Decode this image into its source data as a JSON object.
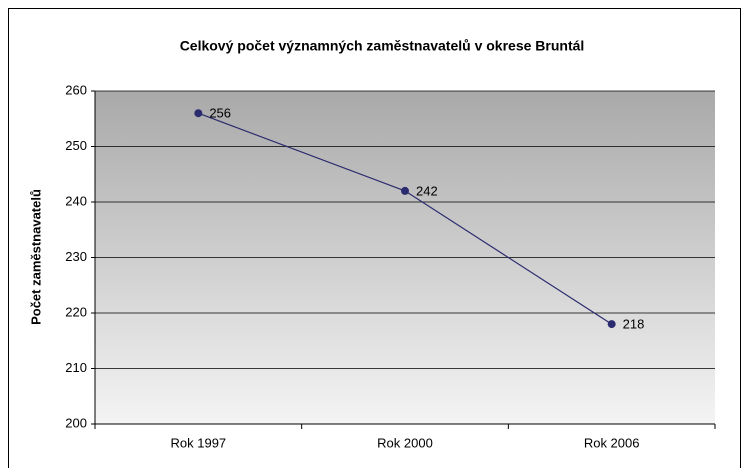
{
  "chart_data": {
    "type": "line",
    "title": "Celkový počet významných zaměstnavatelů v okrese Bruntál",
    "y_label": "Počet zaměstnavatelů",
    "categories": [
      "Rok 1997",
      "Rok 2000",
      "Rok 2006"
    ],
    "series": [
      {
        "name": "Počet zaměstnavatelů",
        "color": "#2b2b6f",
        "values": [
          256,
          242,
          218
        ]
      }
    ],
    "ylim": [
      200,
      260
    ],
    "yticks": [
      200,
      210,
      220,
      230,
      240,
      250,
      260
    ],
    "grid": true
  }
}
